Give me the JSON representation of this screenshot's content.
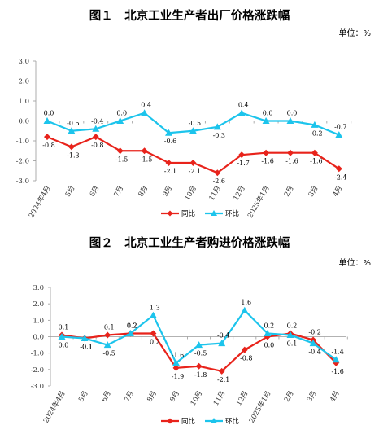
{
  "charts": [
    {
      "title": "图１　北京工业生产者出厂价格涨跌幅",
      "unit": "单位：%"
    },
    {
      "title": "图２　北京工业生产者购进价格涨跌幅",
      "unit": "单位：%"
    }
  ],
  "chart_data": [
    {
      "type": "line",
      "title": "图１　北京工业生产者出厂价格涨跌幅",
      "unit": "单位：%",
      "categories": [
        "2024年4月",
        "5月",
        "6月",
        "7月",
        "8月",
        "9月",
        "10月",
        "11月",
        "12月",
        "2025年1月",
        "2月",
        "3月",
        "4月"
      ],
      "ylim": [
        -3.0,
        3.0
      ],
      "yticks": [
        "3.0",
        "2.0",
        "1.0",
        "0.0",
        "-1.0",
        "-2.0",
        "-3.0"
      ],
      "grid": false,
      "legend": "bottom",
      "series": [
        {
          "name": "同比",
          "color": "#e8231b",
          "marker": "diamond",
          "values": [
            -0.8,
            -1.3,
            -0.8,
            -1.5,
            -1.5,
            -2.1,
            -2.1,
            -2.6,
            -1.7,
            -1.6,
            -1.6,
            -1.6,
            -2.4
          ]
        },
        {
          "name": "环比",
          "color": "#1cc4ec",
          "marker": "triangle",
          "values": [
            0.0,
            -0.5,
            -0.4,
            0.0,
            0.4,
            -0.6,
            -0.5,
            -0.3,
            0.4,
            0.0,
            0.0,
            -0.2,
            -0.7
          ]
        }
      ]
    },
    {
      "type": "line",
      "title": "图２　北京工业生产者购进价格涨跌幅",
      "unit": "单位：%",
      "categories": [
        "2024年4月",
        "5月",
        "6月",
        "7月",
        "8月",
        "9月",
        "10月",
        "11月",
        "12月",
        "2025年1月",
        "2月",
        "3月",
        "4月"
      ],
      "ylim": [
        -3.0,
        3.0
      ],
      "yticks": [
        "3.0",
        "2.0",
        "1.0",
        "0.0",
        "-1.0",
        "-2.0",
        "-3.0"
      ],
      "grid": false,
      "legend": "bottom",
      "series": [
        {
          "name": "同比",
          "color": "#e8231b",
          "marker": "diamond",
          "values": [
            0.1,
            -0.1,
            0.1,
            0.2,
            0.2,
            -1.9,
            -1.8,
            -2.1,
            -0.8,
            0.0,
            0.2,
            -0.2,
            -1.6
          ]
        },
        {
          "name": "环比",
          "color": "#1cc4ec",
          "marker": "triangle",
          "values": [
            0.0,
            -0.1,
            -0.5,
            0.2,
            1.3,
            -1.6,
            -0.5,
            -0.4,
            1.6,
            0.2,
            0.1,
            -0.4,
            -1.4
          ]
        }
      ]
    }
  ]
}
